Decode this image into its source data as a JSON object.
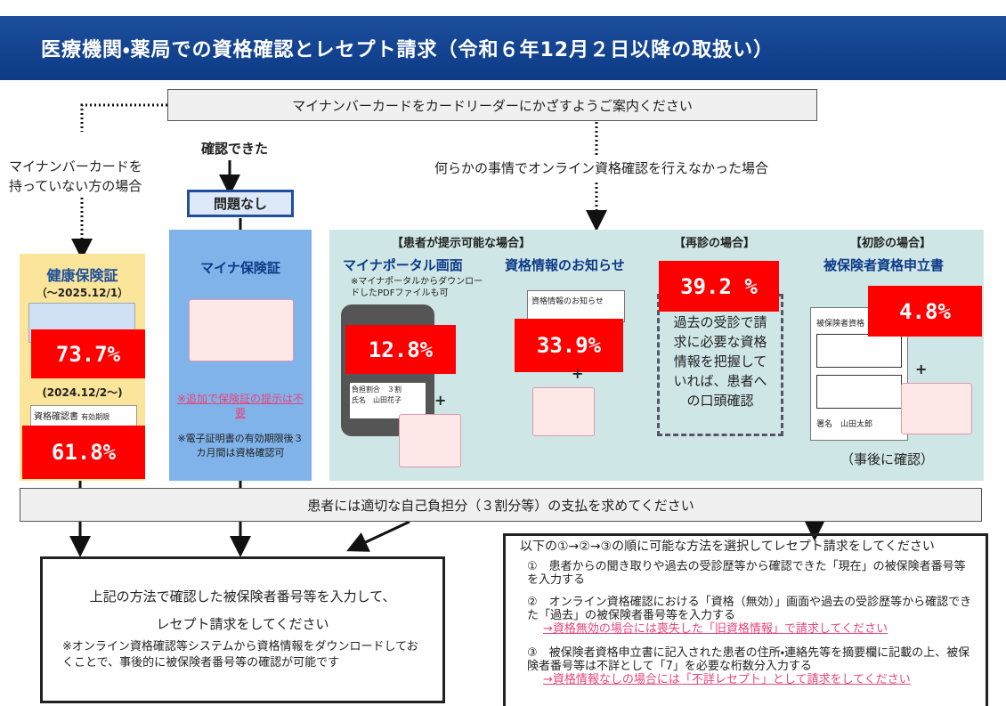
{
  "header": {
    "title": "医療機関・薬局での資格確認とレセプト請求（令和６年12月２日以降の取扱い）"
  },
  "top": {
    "instruction": "マイナンバーカードをカードリーダーにかざすようご案内ください",
    "no_card": "マイナンバーカードを\n持っていない方の場合",
    "confirmed": "確認できた",
    "ok": "問題なし",
    "failed": "何らかの事情でオンライン資格確認を行えなかった場合"
  },
  "columns": {
    "insurance_card": {
      "title": "健康保険証",
      "period": "（～2025.12/1）",
      "share": "73.7%",
      "period2": "(2024.12/2～)",
      "doc": "資格確認書",
      "doc_note": "有効期限",
      "share2": "61.8%"
    },
    "myna": {
      "title": "マイナ保険証",
      "note1": "※追加で保険証の提示は不要",
      "note2": "※電子証明書の有効期限後３カ月間は資格確認可"
    },
    "presentable": {
      "heading": "【患者が提示可能な場合】",
      "portal": "マイナポータル画面",
      "portal_note": "※マイナポータルからダウンロードしたPDFファイルも可",
      "portal_share": "12.8%",
      "notice": "資格情報のお知らせ",
      "notice_card": "資格情報のお知らせ",
      "notice_share": "33.9%",
      "ratio": "負担割合　３割",
      "name": "氏名　山田花子",
      "plus": "+"
    },
    "revisit": {
      "heading": "【再診の場合】",
      "share": "39.2 %",
      "text": "過去の受診で請求に必要な資格情報を把握していれば、患者への口頭確認"
    },
    "first": {
      "heading": "【初診の場合】",
      "title": "被保険者資格申立書",
      "share": "4.8%",
      "form": "被保険者資格",
      "sign": "署名　山田太郎",
      "later": "（事後に確認）",
      "plus": "+"
    }
  },
  "payment": "患者には適切な自己負担分（３割分等）の支払を求めてください",
  "left_box": {
    "line1": "上記の方法で確認した被保険者番号等を入力して、",
    "line2": "レセプト請求をしてください",
    "note": "※オンライン資格確認等システムから資格情報をダウンロードしておくことで、事後的に被保険者番号等の確認が可能です"
  },
  "right_box": {
    "title": "以下の①→②→③の順に可能な方法を選択してレセプト請求をしてください",
    "items": [
      {
        "text": "①　患者からの聞き取りや過去の受診歴等から確認できた「現在」の被保険者番号等を入力する"
      },
      {
        "text": "②　オンライン資格確認における「資格（無効）」画面や過去の受診歴等から確認できた「過去」の被保険者番号等を入力する",
        "link": "→資格無効の場合には喪失した「旧資格情報」で請求してください"
      },
      {
        "text": "③　被保険者資格申立書に記入された患者の住所・連絡先等を摘要欄に記載の上、被保険者番号等は不詳として「7」を必要な桁数分入力する",
        "link": "→資格情報なしの場合には「不詳レセプト」として請求をしてください"
      }
    ]
  }
}
